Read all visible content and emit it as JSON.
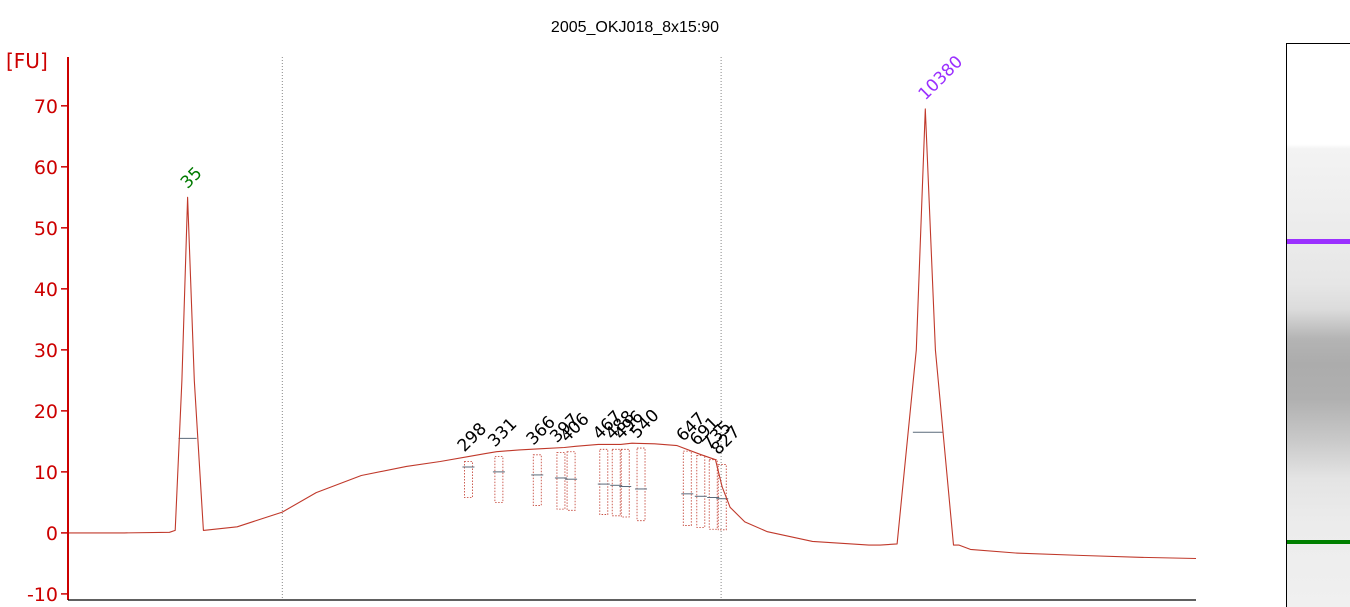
{
  "title": "2005_OKJ018_8x15:90",
  "colors": {
    "trace": "#c0392b",
    "axis": "#cc0000",
    "lower_marker": "#007a00",
    "upper_marker": "#9b30ff",
    "peak_label": "#000000",
    "gel_upper_band": "#9b30ff",
    "gel_lower_band": "#008000"
  },
  "chart_data": {
    "type": "line",
    "title": "2005_OKJ018_8x15:90",
    "ylabel": "[FU]",
    "xlabel": "",
    "ylim": [
      -11,
      78
    ],
    "xlim": [
      0,
      100
    ],
    "yticks": [
      -10,
      0,
      10,
      20,
      30,
      40,
      50,
      60,
      70
    ],
    "grid": false,
    "region_boundaries_x": [
      19.0,
      57.9
    ],
    "series": [
      {
        "values_x": [
          0,
          5,
          9,
          9.5,
          10.1,
          10.6,
          11.2,
          12,
          15,
          19,
          22,
          26,
          30,
          33,
          35.5,
          37,
          38,
          40,
          42,
          44,
          45,
          47,
          49,
          50,
          52,
          54,
          56,
          57.4,
          58,
          58.7,
          60,
          62,
          66,
          71,
          72,
          73.5,
          75.2,
          76,
          76.9,
          78.5,
          79,
          80,
          84,
          90,
          95,
          100
        ],
        "values_y": [
          0,
          0,
          0.1,
          0.4,
          25,
          55,
          25,
          0.4,
          1,
          3.4,
          6.6,
          9.4,
          10.9,
          11.7,
          12.5,
          13,
          13.3,
          13.6,
          13.8,
          14,
          14.2,
          14.5,
          14.5,
          14.7,
          14.6,
          14.3,
          12.9,
          12,
          7.5,
          4.2,
          1.8,
          0.2,
          -1.4,
          -2,
          -2,
          -1.8,
          30,
          69.5,
          30,
          -2,
          -2,
          -2.7,
          -3.3,
          -3.7,
          -4,
          -4.2
        ]
      }
    ],
    "markers": [
      {
        "label": "35",
        "x": 10.6,
        "y": 55,
        "role": "lower"
      },
      {
        "label": "10380",
        "x": 76.0,
        "y": 69.5,
        "role": "upper"
      }
    ],
    "peaks": [
      {
        "label": "298",
        "x": 35.5,
        "y": 12.5,
        "base": 5.8,
        "mark": 10.8
      },
      {
        "label": "331",
        "x": 38.2,
        "y": 13.3,
        "base": 5.0,
        "mark": 10.0
      },
      {
        "label": "366",
        "x": 41.6,
        "y": 13.6,
        "base": 4.5,
        "mark": 9.5
      },
      {
        "label": "397",
        "x": 43.7,
        "y": 14.0,
        "base": 3.9,
        "mark": 9.0
      },
      {
        "label": "406",
        "x": 44.6,
        "y": 14.1,
        "base": 3.7,
        "mark": 8.8
      },
      {
        "label": "467",
        "x": 47.5,
        "y": 14.5,
        "base": 3.0,
        "mark": 8.0
      },
      {
        "label": "488",
        "x": 48.6,
        "y": 14.5,
        "base": 2.8,
        "mark": 7.8
      },
      {
        "label": "496",
        "x": 49.4,
        "y": 14.5,
        "base": 2.6,
        "mark": 7.6
      },
      {
        "label": "540",
        "x": 50.8,
        "y": 14.7,
        "base": 2.0,
        "mark": 7.2
      },
      {
        "label": "647",
        "x": 54.9,
        "y": 14.2,
        "base": 1.2,
        "mark": 6.4
      },
      {
        "label": "691",
        "x": 56.1,
        "y": 13.5,
        "base": 0.9,
        "mark": 6.0
      },
      {
        "label": "735",
        "x": 57.2,
        "y": 12.8,
        "base": 0.6,
        "mark": 5.8
      },
      {
        "label": "827",
        "x": 58.0,
        "y": 12.0,
        "base": 0.5,
        "mark": 5.6
      }
    ],
    "marker_spans": [
      {
        "x0": 9.8,
        "x1": 11.4,
        "mark": 15.5
      },
      {
        "x0": 74.9,
        "x1": 77.6,
        "mark": 16.5
      }
    ]
  }
}
